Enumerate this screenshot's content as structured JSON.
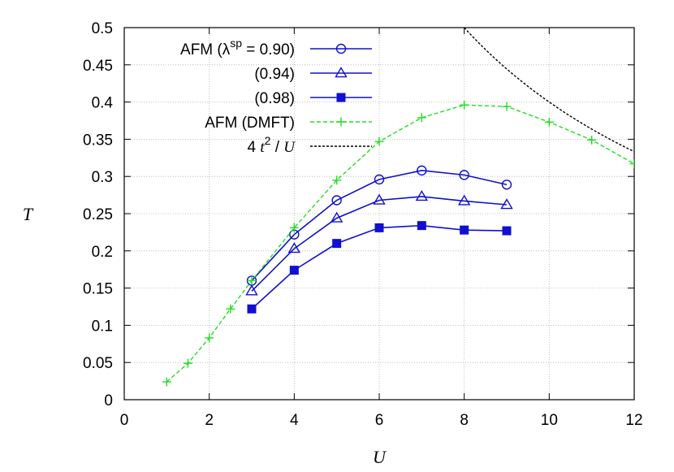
{
  "chart_data": {
    "type": "line",
    "xlabel": "U",
    "ylabel": "T",
    "xlim": [
      0,
      12
    ],
    "ylim": [
      0,
      0.5
    ],
    "xticks": [
      "0",
      "2",
      "4",
      "6",
      "8",
      "10",
      "12"
    ],
    "yticks": [
      "0",
      "0.05",
      "0.1",
      "0.15",
      "0.2",
      "0.25",
      "0.3",
      "0.35",
      "0.4",
      "0.45",
      "0.5"
    ],
    "grid": true,
    "legend_position": "top-left",
    "series": [
      {
        "name": "AFM (λsp = 0.90)",
        "legend_parts": {
          "pre": "AFM (λ",
          "sup": "sp",
          "post": " = 0.90)"
        },
        "color": "#1010d0",
        "marker": "circle-open",
        "line": "solid",
        "x": [
          3,
          4,
          5,
          6,
          7,
          8,
          9
        ],
        "y": [
          0.16,
          0.222,
          0.268,
          0.296,
          0.308,
          0.302,
          0.289
        ]
      },
      {
        "name": "(0.94)",
        "color": "#1010d0",
        "marker": "triangle-open",
        "line": "solid",
        "x": [
          3,
          4,
          5,
          6,
          7,
          8,
          9
        ],
        "y": [
          0.146,
          0.203,
          0.244,
          0.268,
          0.273,
          0.267,
          0.262
        ]
      },
      {
        "name": "(0.98)",
        "color": "#1010d0",
        "marker": "square-filled",
        "line": "solid",
        "x": [
          3,
          4,
          5,
          6,
          7,
          8,
          9
        ],
        "y": [
          0.122,
          0.174,
          0.21,
          0.231,
          0.234,
          0.228,
          0.227
        ]
      },
      {
        "name": "AFM (DMFT)",
        "color": "#22dd22",
        "marker": "plus",
        "line": "dashed",
        "x": [
          1,
          1.5,
          2,
          2.5,
          3,
          4,
          5,
          6,
          7,
          8,
          9,
          10,
          11,
          12
        ],
        "y": [
          0.024,
          0.049,
          0.083,
          0.122,
          0.16,
          0.231,
          0.295,
          0.347,
          0.379,
          0.396,
          0.394,
          0.373,
          0.349,
          0.317
        ]
      },
      {
        "name": "4 t2 / U",
        "legend_parts": {
          "pre": "4 ",
          "italic": "t",
          "sup": "2",
          "post": " / ",
          "italic2": "U"
        },
        "color": "#000000",
        "marker": "none",
        "line": "dotted",
        "function": "4/U",
        "domain": [
          8,
          12
        ]
      }
    ]
  }
}
